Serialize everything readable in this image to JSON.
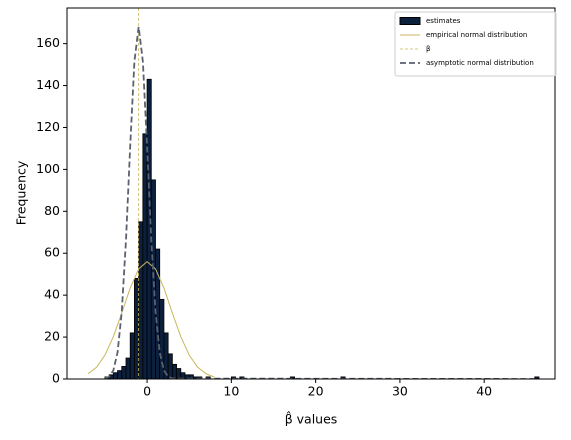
{
  "chart_data": {
    "type": "histogram",
    "xlabel": "β̂ values",
    "ylabel": "Frequency",
    "xlim": [
      -9.5,
      48.4
    ],
    "ylim": [
      0,
      177
    ],
    "xticks": [
      0,
      10,
      20,
      30,
      40
    ],
    "yticks": [
      0,
      20,
      40,
      60,
      80,
      100,
      120,
      140,
      160
    ],
    "legend": "upper right",
    "series": [
      {
        "name": "estimates",
        "type": "histogram",
        "color": "#0c1f3d",
        "edgecolor": "#000000",
        "bins": [
          -5,
          -4.5,
          -4,
          -3.5,
          -3,
          -2.5,
          -2,
          -1.5,
          -1,
          -0.5,
          0,
          0.5,
          1,
          1.5,
          2,
          2.5,
          3,
          3.5,
          4,
          4.5,
          5,
          5.5,
          6,
          6.5,
          7,
          7.5,
          8,
          10,
          10.5,
          11,
          11.5,
          17,
          17.5,
          23,
          23.5,
          46,
          46.5
        ],
        "values": [
          1,
          2,
          3,
          4,
          6,
          10,
          22,
          48,
          75,
          117,
          143,
          95,
          62,
          38,
          22,
          12,
          7,
          5,
          3,
          2,
          2,
          1,
          1,
          0,
          1,
          0,
          0,
          1,
          0,
          1,
          0,
          1,
          0,
          1,
          0,
          1
        ]
      },
      {
        "name": "empirical normal distribution",
        "type": "line",
        "color": "#c9b65b",
        "dash": false,
        "x": [
          -7,
          -6,
          -5,
          -4,
          -3,
          -2,
          -1,
          0,
          1,
          2,
          3,
          4,
          5,
          6,
          7,
          8
        ],
        "values": [
          2.5,
          5.6,
          11.4,
          20.2,
          31.5,
          43.4,
          52.5,
          56,
          52.5,
          43.4,
          31.5,
          20.2,
          11.4,
          5.6,
          2.5,
          0.9
        ]
      },
      {
        "name": "β",
        "type": "vline",
        "color": "#c9b65b",
        "dash": true,
        "x": -1
      },
      {
        "name": "asymptotic normal distribution",
        "type": "line",
        "color": "#5c616e",
        "dash": true,
        "x": [
          -5,
          -4.5,
          -4,
          -3.5,
          -3,
          -2.5,
          -2,
          -1.5,
          -1,
          -0.5,
          0,
          0.5,
          1,
          1.5,
          2,
          2.5,
          3,
          46
        ],
        "values": [
          0.2,
          1.1,
          4.1,
          12.7,
          32.2,
          66.3,
          111.2,
          151.5,
          168,
          151.5,
          111.2,
          66.3,
          32.2,
          12.7,
          4.1,
          1.1,
          0.2,
          0
        ]
      }
    ]
  }
}
